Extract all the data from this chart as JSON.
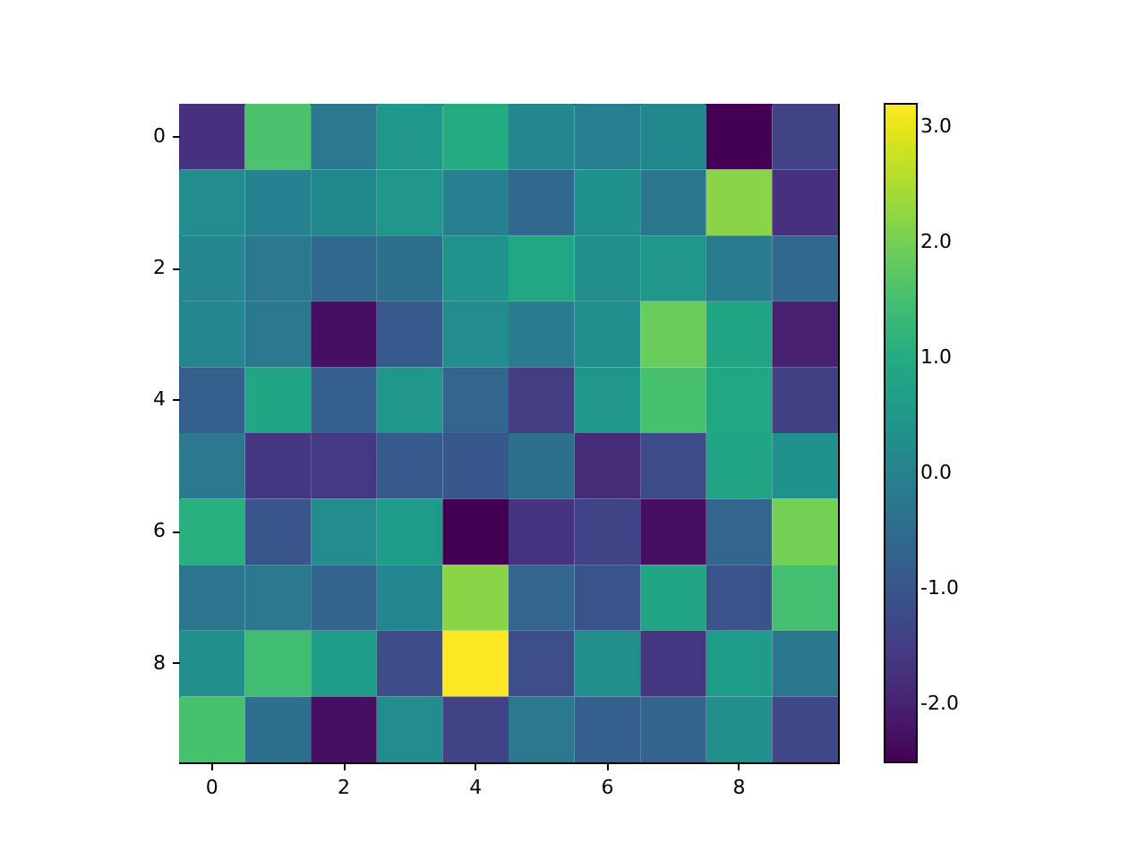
{
  "chart_data": {
    "type": "heatmap",
    "categories": [
      "0",
      null,
      "2",
      null,
      "4",
      null,
      "6",
      null,
      "8",
      null
    ],
    "y_categories": [
      "0",
      null,
      "2",
      null,
      "4",
      null,
      "6",
      null,
      "8",
      null
    ],
    "cells": [
      [
        -1.7,
        1.6,
        -0.2,
        0.5,
        1.0,
        0.1,
        -0.05,
        0.15,
        -2.5,
        -1.4
      ],
      [
        0.25,
        0.0,
        0.15,
        0.5,
        -0.05,
        -0.6,
        0.35,
        -0.25,
        2.2,
        -1.7
      ],
      [
        0.1,
        -0.2,
        -0.6,
        -0.4,
        0.4,
        0.9,
        0.3,
        0.5,
        -0.15,
        -0.6
      ],
      [
        0.1,
        -0.2,
        -2.3,
        -0.9,
        0.25,
        -0.15,
        0.3,
        1.9,
        0.85,
        -2.0
      ],
      [
        -0.8,
        0.85,
        -0.8,
        0.55,
        -0.65,
        -1.5,
        0.55,
        1.55,
        0.9,
        -1.45
      ],
      [
        -0.2,
        -1.6,
        -1.55,
        -0.9,
        -0.95,
        -0.4,
        -1.8,
        -1.2,
        0.85,
        0.35
      ],
      [
        1.1,
        -1.0,
        0.25,
        0.6,
        -2.5,
        -1.65,
        -1.35,
        -2.3,
        -0.65,
        2.0
      ],
      [
        -0.3,
        -0.2,
        -0.7,
        0.1,
        2.2,
        -0.65,
        -1.05,
        0.85,
        -1.05,
        1.5
      ],
      [
        0.3,
        1.45,
        0.65,
        -1.2,
        3.2,
        -1.15,
        0.3,
        -1.6,
        0.6,
        -0.25
      ],
      [
        1.55,
        -0.45,
        -2.3,
        0.25,
        -1.4,
        -0.2,
        -0.8,
        -0.7,
        0.3,
        -1.3
      ]
    ],
    "clim": [
      -2.5,
      3.2
    ],
    "cticks": [
      {
        "value": -2,
        "label": "-2.0"
      },
      {
        "value": -1,
        "label": "-1.0"
      },
      {
        "value": 0,
        "label": "0.0"
      },
      {
        "value": 1,
        "label": "1.0"
      },
      {
        "value": 2,
        "label": "2.0"
      },
      {
        "value": 3,
        "label": "3.0"
      }
    ]
  }
}
